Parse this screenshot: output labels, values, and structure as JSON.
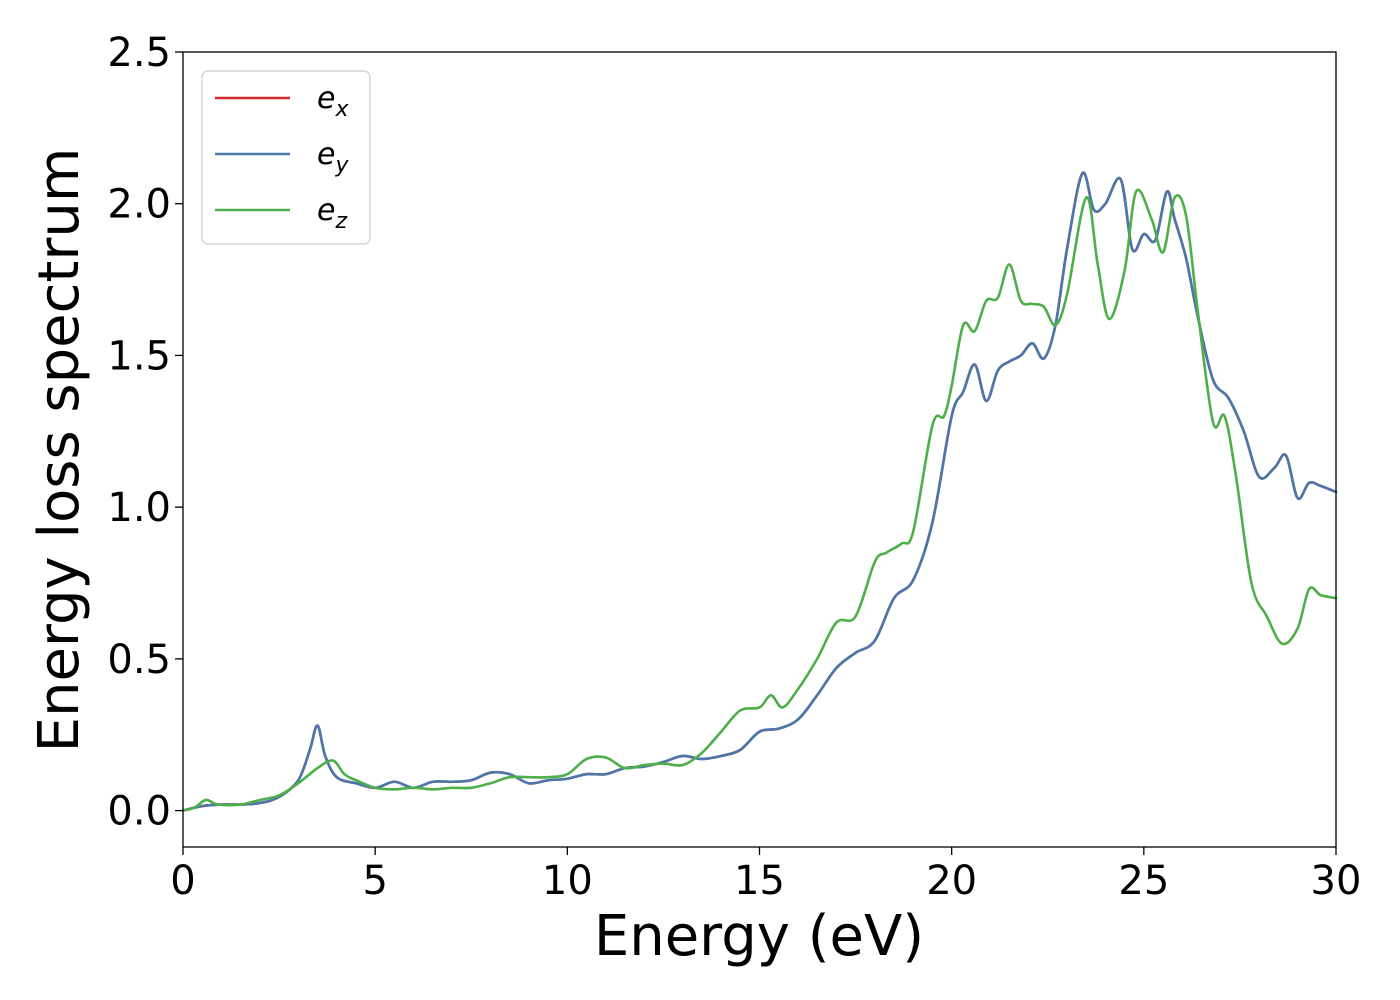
{
  "chart_data": {
    "type": "line",
    "xlabel": "Energy (eV)",
    "ylabel": "Energy loss spectrum",
    "xlim": [
      0,
      30
    ],
    "ylim": [
      -0.12,
      2.5
    ],
    "xticks": [
      0,
      5,
      10,
      15,
      20,
      25,
      30
    ],
    "yticks": [
      0.0,
      0.5,
      1.0,
      1.5,
      2.0,
      2.5
    ],
    "xtick_labels": [
      "0",
      "5",
      "10",
      "15",
      "20",
      "25",
      "30"
    ],
    "ytick_labels": [
      "0.0",
      "0.5",
      "1.0",
      "1.5",
      "2.0",
      "2.5"
    ],
    "grid": false,
    "legend_position": "top-left",
    "series": [
      {
        "name": "e_x",
        "label_base": "e",
        "label_sub": "x",
        "color": "#d62728",
        "x": [
          0,
          0.5,
          1,
          1.5,
          2,
          2.5,
          3,
          3.3,
          3.5,
          3.7,
          4,
          4.5,
          5,
          5.5,
          6,
          6.5,
          7,
          7.5,
          8,
          8.5,
          9,
          9.5,
          10,
          10.5,
          11,
          11.5,
          12,
          12.5,
          13,
          13.5,
          14,
          14.5,
          15,
          15.5,
          16,
          16.5,
          17,
          17.5,
          18,
          18.5,
          19,
          19.5,
          20,
          20.3,
          20.6,
          20.9,
          21.2,
          21.5,
          21.8,
          22.1,
          22.4,
          22.7,
          23,
          23.4,
          23.7,
          24,
          24.4,
          24.7,
          25,
          25.3,
          25.6,
          25.8,
          26.1,
          26.4,
          26.8,
          27.2,
          27.6,
          28,
          28.4,
          28.7,
          29,
          29.3,
          29.6,
          30
        ],
        "y": [
          0.0,
          0.015,
          0.02,
          0.02,
          0.025,
          0.045,
          0.1,
          0.2,
          0.28,
          0.18,
          0.11,
          0.09,
          0.075,
          0.095,
          0.075,
          0.095,
          0.095,
          0.1,
          0.125,
          0.12,
          0.09,
          0.1,
          0.105,
          0.12,
          0.12,
          0.14,
          0.145,
          0.16,
          0.18,
          0.17,
          0.18,
          0.2,
          0.26,
          0.27,
          0.3,
          0.38,
          0.47,
          0.52,
          0.56,
          0.7,
          0.76,
          0.95,
          1.3,
          1.38,
          1.47,
          1.35,
          1.45,
          1.48,
          1.5,
          1.54,
          1.49,
          1.6,
          1.85,
          2.1,
          1.98,
          2.0,
          2.08,
          1.85,
          1.9,
          1.88,
          2.04,
          1.95,
          1.82,
          1.63,
          1.42,
          1.36,
          1.25,
          1.1,
          1.13,
          1.17,
          1.03,
          1.08,
          1.07,
          1.05
        ]
      },
      {
        "name": "e_y",
        "label_base": "e",
        "label_sub": "y",
        "color": "#4a78ac",
        "x": [
          0,
          0.5,
          1,
          1.5,
          2,
          2.5,
          3,
          3.3,
          3.5,
          3.7,
          4,
          4.5,
          5,
          5.5,
          6,
          6.5,
          7,
          7.5,
          8,
          8.5,
          9,
          9.5,
          10,
          10.5,
          11,
          11.5,
          12,
          12.5,
          13,
          13.5,
          14,
          14.5,
          15,
          15.5,
          16,
          16.5,
          17,
          17.5,
          18,
          18.5,
          19,
          19.5,
          20,
          20.3,
          20.6,
          20.9,
          21.2,
          21.5,
          21.8,
          22.1,
          22.4,
          22.7,
          23,
          23.4,
          23.7,
          24,
          24.4,
          24.7,
          25,
          25.3,
          25.6,
          25.8,
          26.1,
          26.4,
          26.8,
          27.2,
          27.6,
          28,
          28.4,
          28.7,
          29,
          29.3,
          29.6,
          30
        ],
        "y": [
          0.0,
          0.015,
          0.02,
          0.02,
          0.025,
          0.045,
          0.1,
          0.2,
          0.28,
          0.18,
          0.11,
          0.09,
          0.075,
          0.095,
          0.075,
          0.095,
          0.095,
          0.1,
          0.125,
          0.12,
          0.09,
          0.1,
          0.105,
          0.12,
          0.12,
          0.14,
          0.145,
          0.16,
          0.18,
          0.17,
          0.18,
          0.2,
          0.26,
          0.27,
          0.3,
          0.38,
          0.47,
          0.52,
          0.56,
          0.7,
          0.76,
          0.95,
          1.3,
          1.38,
          1.47,
          1.35,
          1.45,
          1.48,
          1.5,
          1.54,
          1.49,
          1.6,
          1.85,
          2.1,
          1.98,
          2.0,
          2.08,
          1.85,
          1.9,
          1.88,
          2.04,
          1.95,
          1.82,
          1.63,
          1.42,
          1.36,
          1.25,
          1.1,
          1.13,
          1.17,
          1.03,
          1.08,
          1.07,
          1.05
        ]
      },
      {
        "name": "e_z",
        "label_base": "e",
        "label_sub": "z",
        "color": "#4daf4a",
        "x": [
          0,
          0.3,
          0.6,
          0.9,
          1.5,
          2,
          2.5,
          3,
          3.5,
          3.9,
          4.2,
          4.5,
          5,
          5.5,
          6,
          6.5,
          7,
          7.5,
          8,
          8.5,
          9,
          9.5,
          10,
          10.5,
          11,
          11.5,
          12,
          12.5,
          13,
          13.5,
          14,
          14.5,
          15,
          15.3,
          15.6,
          16,
          16.5,
          17,
          17.5,
          18,
          18.3,
          18.7,
          19,
          19.5,
          19.8,
          20,
          20.3,
          20.6,
          20.9,
          21.2,
          21.5,
          21.8,
          22.1,
          22.4,
          22.7,
          23,
          23.5,
          23.8,
          24.1,
          24.5,
          24.8,
          25.2,
          25.5,
          25.8,
          26.1,
          26.4,
          26.8,
          27.1,
          27.4,
          27.8,
          28.2,
          28.6,
          29,
          29.3,
          29.6,
          30
        ],
        "y": [
          0.0,
          0.01,
          0.035,
          0.02,
          0.02,
          0.035,
          0.05,
          0.09,
          0.14,
          0.165,
          0.12,
          0.1,
          0.075,
          0.07,
          0.075,
          0.07,
          0.075,
          0.075,
          0.09,
          0.11,
          0.11,
          0.11,
          0.12,
          0.17,
          0.175,
          0.14,
          0.15,
          0.155,
          0.15,
          0.19,
          0.26,
          0.33,
          0.34,
          0.38,
          0.34,
          0.4,
          0.5,
          0.62,
          0.64,
          0.82,
          0.85,
          0.88,
          0.92,
          1.27,
          1.3,
          1.4,
          1.6,
          1.58,
          1.68,
          1.69,
          1.8,
          1.68,
          1.67,
          1.66,
          1.6,
          1.7,
          2.02,
          1.8,
          1.62,
          1.78,
          2.04,
          1.95,
          1.84,
          2.02,
          1.96,
          1.65,
          1.28,
          1.3,
          1.1,
          0.75,
          0.64,
          0.55,
          0.6,
          0.73,
          0.71,
          0.7
        ]
      }
    ]
  }
}
